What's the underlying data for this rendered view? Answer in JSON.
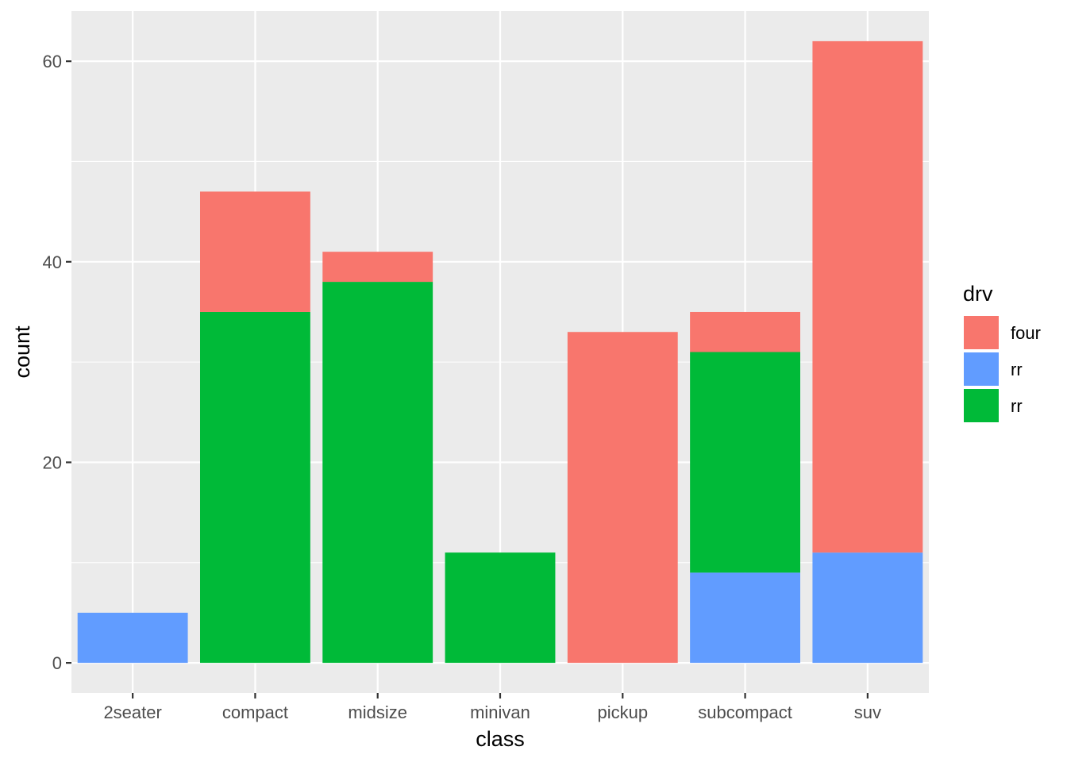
{
  "chart_data": {
    "type": "bar",
    "stacked": true,
    "title": "",
    "xlabel": "class",
    "ylabel": "count",
    "categories": [
      "2seater",
      "compact",
      "midsize",
      "minivan",
      "pickup",
      "subcompact",
      "suv"
    ],
    "yticks": [
      "0",
      "20",
      "40",
      "60"
    ],
    "ylim": [
      -3,
      65
    ],
    "series": [
      {
        "name": "four",
        "color": "#F8766D",
        "values": [
          0,
          12,
          3,
          0,
          33,
          4,
          51
        ]
      },
      {
        "name": "rr",
        "color": "#00BA38",
        "values": [
          0,
          35,
          38,
          11,
          0,
          22,
          0
        ]
      },
      {
        "name": "rr",
        "color": "#619CFF",
        "values": [
          5,
          0,
          0,
          0,
          0,
          9,
          11
        ]
      }
    ],
    "legend": {
      "title": "drv",
      "position": "right",
      "entries": [
        {
          "label": "four",
          "color": "#F8766D"
        },
        {
          "label": "rr",
          "color": "#619CFF"
        },
        {
          "label": "rr",
          "color": "#00BA38"
        }
      ]
    },
    "grid": true,
    "panel_background": "#EBEBEB"
  }
}
